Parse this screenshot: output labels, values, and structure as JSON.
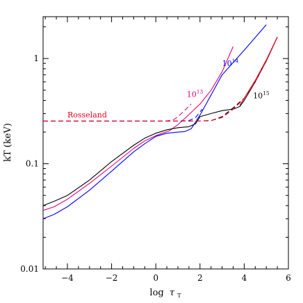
{
  "chart_data": {
    "type": "line",
    "xlabel": "log",
    "xlabel_symbol": "τ",
    "xlabel_subscript": "T",
    "ylabel": "kT (keV)",
    "xlim": [
      -5.1,
      6
    ],
    "ylim": [
      0.01,
      2.5
    ],
    "yscale": "log",
    "grid": false,
    "x_ticks": [
      -4,
      -2,
      0,
      2,
      4,
      6
    ],
    "x_tick_labels": [
      "−4",
      "−2",
      "0",
      "2",
      "4",
      "6"
    ],
    "y_ticks": [
      0.01,
      0.1,
      1
    ],
    "y_tick_labels": [
      "0.01",
      "0.1",
      "1"
    ],
    "series": [
      {
        "label_base": "10",
        "label_exp": "13",
        "color": "#e6007e",
        "style": "solid",
        "points": [
          [
            -5.1,
            0.036
          ],
          [
            -4.6,
            0.039
          ],
          [
            -4,
            0.046
          ],
          [
            -3,
            0.065
          ],
          [
            -2,
            0.095
          ],
          [
            -1,
            0.14
          ],
          [
            -0.5,
            0.165
          ],
          [
            0,
            0.185
          ],
          [
            0.3,
            0.195
          ],
          [
            0.6,
            0.205
          ],
          [
            1,
            0.235
          ],
          [
            1.4,
            0.28
          ],
          [
            2,
            0.37
          ],
          [
            2.5,
            0.5
          ],
          [
            3,
            0.75
          ],
          [
            3.5,
            1.3
          ]
        ]
      },
      {
        "label_base": "10",
        "label_exp": "13",
        "color": "#e6007e",
        "style": "dashed",
        "points": [
          [
            -5.1,
            0.255
          ],
          [
            0,
            0.255
          ],
          [
            0.5,
            0.255
          ],
          [
            0.8,
            0.262
          ],
          [
            1,
            0.28
          ],
          [
            1.3,
            0.32
          ],
          [
            1.6,
            0.37
          ]
        ]
      },
      {
        "label_base": "10",
        "label_exp": "14",
        "color": "#0000ff",
        "style": "solid",
        "points": [
          [
            -5.1,
            0.03
          ],
          [
            -4.6,
            0.033
          ],
          [
            -4,
            0.039
          ],
          [
            -3,
            0.056
          ],
          [
            -2,
            0.085
          ],
          [
            -1,
            0.13
          ],
          [
            -0.5,
            0.155
          ],
          [
            0,
            0.182
          ],
          [
            0.5,
            0.195
          ],
          [
            1,
            0.2
          ],
          [
            1.3,
            0.202
          ],
          [
            1.6,
            0.215
          ],
          [
            2,
            0.29
          ],
          [
            2.5,
            0.45
          ],
          [
            3,
            0.7
          ],
          [
            4,
            1.2
          ],
          [
            5,
            2.1
          ]
        ]
      },
      {
        "label_base": "10",
        "label_exp": "14",
        "color": "#0000ff",
        "style": "dashed",
        "points": [
          [
            -5.1,
            0.255
          ],
          [
            1,
            0.255
          ],
          [
            1.5,
            0.257
          ],
          [
            1.8,
            0.275
          ],
          [
            2.1,
            0.33
          ]
        ]
      },
      {
        "label_base": "10",
        "label_exp": "15",
        "color": "#000000",
        "style": "solid",
        "points": [
          [
            -5.1,
            0.04
          ],
          [
            -4.6,
            0.044
          ],
          [
            -4,
            0.05
          ],
          [
            -3,
            0.07
          ],
          [
            -2,
            0.105
          ],
          [
            -1,
            0.15
          ],
          [
            -0.5,
            0.175
          ],
          [
            0,
            0.195
          ],
          [
            0.5,
            0.21
          ],
          [
            1,
            0.22
          ],
          [
            1.5,
            0.225
          ],
          [
            1.8,
            0.24
          ],
          [
            2,
            0.28
          ],
          [
            2.5,
            0.3
          ],
          [
            3,
            0.32
          ],
          [
            3.5,
            0.33
          ],
          [
            3.8,
            0.35
          ],
          [
            4,
            0.4
          ],
          [
            4.5,
            0.6
          ],
          [
            5,
            0.95
          ],
          [
            5.5,
            1.6
          ]
        ]
      },
      {
        "label_base": "10",
        "label_exp": "15",
        "color": "#000000",
        "style": "dashed",
        "points": [
          [
            -5.1,
            0.255
          ],
          [
            2,
            0.255
          ],
          [
            2.5,
            0.257
          ],
          [
            3,
            0.28
          ],
          [
            3.5,
            0.34
          ],
          [
            4,
            0.42
          ]
        ]
      },
      {
        "label_base": "",
        "label_exp": "",
        "color": "#e8001c",
        "style": "dashed",
        "points": [
          [
            -5.1,
            0.255
          ],
          [
            2,
            0.255
          ],
          [
            2.5,
            0.257
          ],
          [
            3,
            0.275
          ],
          [
            3.5,
            0.33
          ],
          [
            3.8,
            0.38
          ],
          [
            4,
            0.42
          ],
          [
            4.5,
            0.6
          ],
          [
            5,
            0.95
          ],
          [
            5.5,
            1.6
          ]
        ]
      },
      {
        "label_base": "",
        "label_exp": "",
        "color": "#e8001c",
        "style": "solid",
        "points": [
          [
            3.8,
            0.36
          ],
          [
            4,
            0.42
          ],
          [
            4.5,
            0.62
          ],
          [
            5,
            0.97
          ],
          [
            5.5,
            1.6
          ]
        ]
      }
    ],
    "annotations": [
      {
        "text": "Rosseland",
        "color": "#e8001c",
        "x": -4.0,
        "y": 0.275
      },
      {
        "text": "10",
        "sup": "13",
        "color": "#e6007e",
        "x": 1.4,
        "y": 0.43
      },
      {
        "text": "10",
        "sup": "14",
        "color": "#0000ff",
        "x": 3.0,
        "y": 0.85
      },
      {
        "text": "10",
        "sup": "15",
        "color": "#000000",
        "x": 4.4,
        "y": 0.42
      }
    ]
  }
}
